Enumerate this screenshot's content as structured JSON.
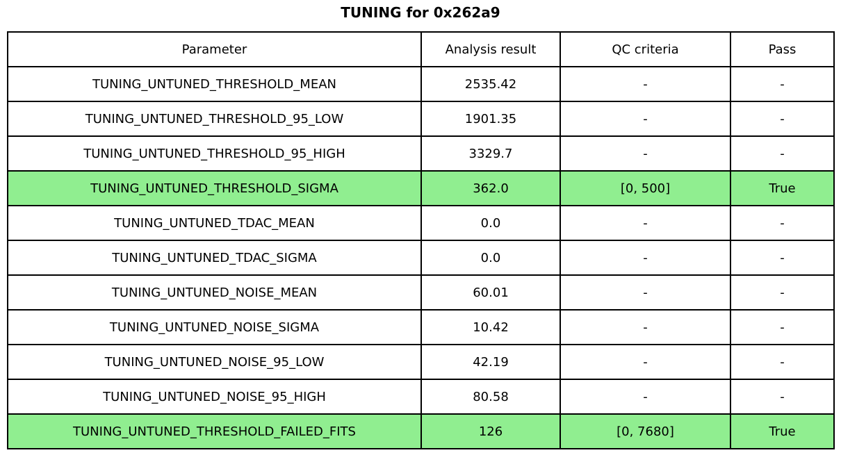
{
  "title": "TUNING for 0x262a9",
  "colors": {
    "pass_row": "#90ee90",
    "border": "#000000",
    "background": "#ffffff",
    "text": "#000000"
  },
  "chart_data": {
    "type": "table",
    "title": "TUNING for 0x262a9",
    "columns": [
      "Parameter",
      "Analysis result",
      "QC criteria",
      "Pass"
    ],
    "rows": [
      {
        "parameter": "TUNING_UNTUNED_THRESHOLD_MEAN",
        "result": "2535.42",
        "qc": "-",
        "pass": "-",
        "highlight": false
      },
      {
        "parameter": "TUNING_UNTUNED_THRESHOLD_95_LOW",
        "result": "1901.35",
        "qc": "-",
        "pass": "-",
        "highlight": false
      },
      {
        "parameter": "TUNING_UNTUNED_THRESHOLD_95_HIGH",
        "result": "3329.7",
        "qc": "-",
        "pass": "-",
        "highlight": false
      },
      {
        "parameter": "TUNING_UNTUNED_THRESHOLD_SIGMA",
        "result": "362.0",
        "qc": "[0, 500]",
        "pass": "True",
        "highlight": true
      },
      {
        "parameter": "TUNING_UNTUNED_TDAC_MEAN",
        "result": "0.0",
        "qc": "-",
        "pass": "-",
        "highlight": false
      },
      {
        "parameter": "TUNING_UNTUNED_TDAC_SIGMA",
        "result": "0.0",
        "qc": "-",
        "pass": "-",
        "highlight": false
      },
      {
        "parameter": "TUNING_UNTUNED_NOISE_MEAN",
        "result": "60.01",
        "qc": "-",
        "pass": "-",
        "highlight": false
      },
      {
        "parameter": "TUNING_UNTUNED_NOISE_SIGMA",
        "result": "10.42",
        "qc": "-",
        "pass": "-",
        "highlight": false
      },
      {
        "parameter": "TUNING_UNTUNED_NOISE_95_LOW",
        "result": "42.19",
        "qc": "-",
        "pass": "-",
        "highlight": false
      },
      {
        "parameter": "TUNING_UNTUNED_NOISE_95_HIGH",
        "result": "80.58",
        "qc": "-",
        "pass": "-",
        "highlight": false
      },
      {
        "parameter": "TUNING_UNTUNED_THRESHOLD_FAILED_FITS",
        "result": "126",
        "qc": "[0, 7680]",
        "pass": "True",
        "highlight": true
      }
    ]
  }
}
